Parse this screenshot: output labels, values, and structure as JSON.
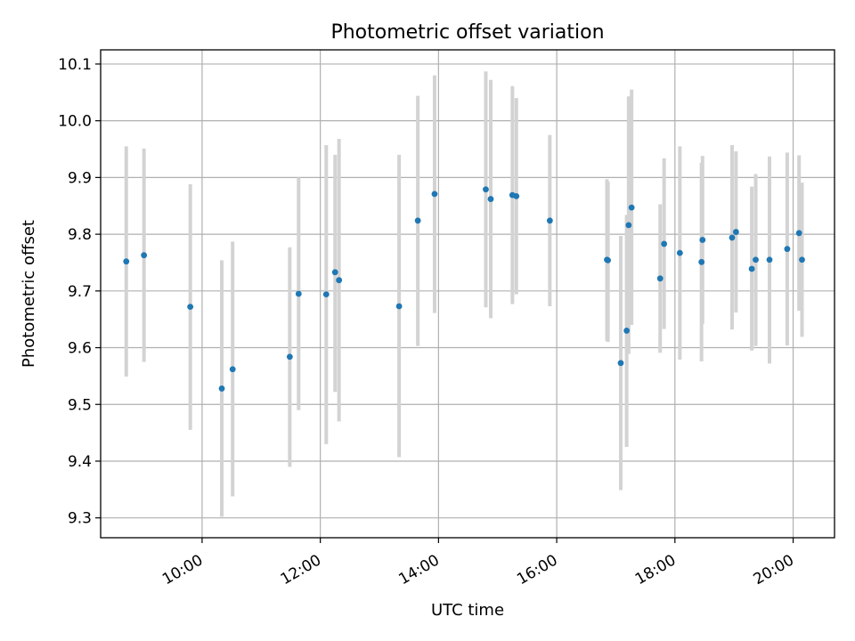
{
  "chart_data": {
    "type": "scatter",
    "title": "Photometric offset variation",
    "xlabel": "UTC time",
    "ylabel": "Photometric offset",
    "x_range": [
      "08:17",
      "20:42"
    ],
    "ylim": [
      9.265,
      10.125
    ],
    "x_ticks": [
      "10:00",
      "12:00",
      "14:00",
      "16:00",
      "18:00",
      "20:00"
    ],
    "y_ticks": [
      9.3,
      9.4,
      9.5,
      9.6,
      9.7,
      9.8,
      9.9,
      10.0,
      10.1
    ],
    "y_tick_labels": [
      "9.3",
      "9.4",
      "9.5",
      "9.6",
      "9.7",
      "9.8",
      "9.9",
      "10.0",
      "10.1"
    ],
    "grid": true,
    "marker_color": "#1f77b4",
    "error_bar_color": "#d3d3d3",
    "points": [
      {
        "t": "08:43",
        "y": 9.752,
        "low": 9.549,
        "high": 9.955
      },
      {
        "t": "09:01",
        "y": 9.763,
        "low": 9.575,
        "high": 9.951
      },
      {
        "t": "09:48",
        "y": 9.672,
        "low": 9.455,
        "high": 9.888
      },
      {
        "t": "10:20",
        "y": 9.528,
        "low": 9.302,
        "high": 9.754
      },
      {
        "t": "10:31",
        "y": 9.562,
        "low": 9.338,
        "high": 9.787
      },
      {
        "t": "11:29",
        "y": 9.584,
        "low": 9.39,
        "high": 9.777
      },
      {
        "t": "11:38",
        "y": 9.695,
        "low": 9.49,
        "high": 9.9
      },
      {
        "t": "12:06",
        "y": 9.694,
        "low": 9.43,
        "high": 9.957
      },
      {
        "t": "12:15",
        "y": 9.733,
        "low": 9.522,
        "high": 9.94
      },
      {
        "t": "12:19",
        "y": 9.719,
        "low": 9.47,
        "high": 9.968
      },
      {
        "t": "13:20",
        "y": 9.673,
        "low": 9.407,
        "high": 9.94
      },
      {
        "t": "13:39",
        "y": 9.824,
        "low": 9.603,
        "high": 10.044
      },
      {
        "t": "13:56",
        "y": 9.871,
        "low": 9.661,
        "high": 10.08
      },
      {
        "t": "14:48",
        "y": 9.879,
        "low": 9.671,
        "high": 10.087
      },
      {
        "t": "14:53",
        "y": 9.862,
        "low": 9.652,
        "high": 10.072
      },
      {
        "t": "15:15",
        "y": 9.869,
        "low": 9.677,
        "high": 10.061
      },
      {
        "t": "15:19",
        "y": 9.867,
        "low": 9.694,
        "high": 10.04
      },
      {
        "t": "15:53",
        "y": 9.824,
        "low": 9.673,
        "high": 9.975
      },
      {
        "t": "16:51",
        "y": 9.755,
        "low": 9.612,
        "high": 9.897
      },
      {
        "t": "16:52",
        "y": 9.754,
        "low": 9.61,
        "high": 9.893
      },
      {
        "t": "17:05",
        "y": 9.573,
        "low": 9.349,
        "high": 9.797
      },
      {
        "t": "17:11",
        "y": 9.63,
        "low": 9.425,
        "high": 9.834
      },
      {
        "t": "17:13",
        "y": 9.816,
        "low": 9.589,
        "high": 10.043
      },
      {
        "t": "17:16",
        "y": 9.847,
        "low": 9.64,
        "high": 10.055
      },
      {
        "t": "17:45",
        "y": 9.722,
        "low": 9.591,
        "high": 9.853
      },
      {
        "t": "17:49",
        "y": 9.783,
        "low": 9.633,
        "high": 9.934
      },
      {
        "t": "18:05",
        "y": 9.767,
        "low": 9.579,
        "high": 9.955
      },
      {
        "t": "18:27",
        "y": 9.751,
        "low": 9.576,
        "high": 9.926
      },
      {
        "t": "18:28",
        "y": 9.79,
        "low": 9.642,
        "high": 9.938
      },
      {
        "t": "18:58",
        "y": 9.794,
        "low": 9.632,
        "high": 9.957
      },
      {
        "t": "19:02",
        "y": 9.804,
        "low": 9.662,
        "high": 9.946
      },
      {
        "t": "19:18",
        "y": 9.739,
        "low": 9.595,
        "high": 9.884
      },
      {
        "t": "19:22",
        "y": 9.755,
        "low": 9.603,
        "high": 9.906
      },
      {
        "t": "19:36",
        "y": 9.755,
        "low": 9.572,
        "high": 9.937
      },
      {
        "t": "19:54",
        "y": 9.774,
        "low": 9.604,
        "high": 9.944
      },
      {
        "t": "20:06",
        "y": 9.802,
        "low": 9.665,
        "high": 9.939
      },
      {
        "t": "20:09",
        "y": 9.755,
        "low": 9.619,
        "high": 9.891
      }
    ]
  }
}
